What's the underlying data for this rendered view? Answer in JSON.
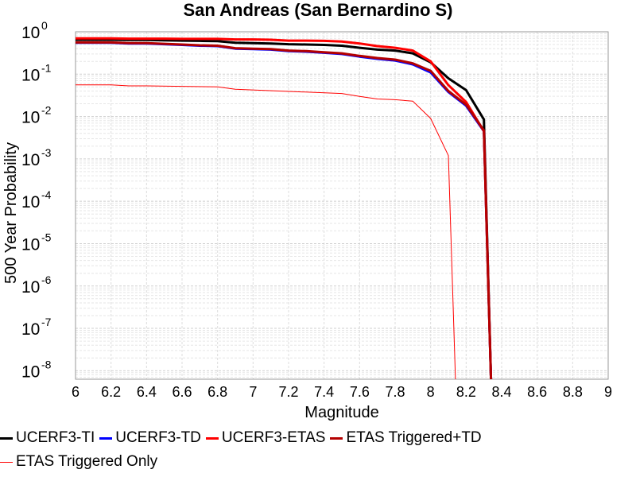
{
  "chart_data": {
    "type": "line",
    "title": "San Andreas (San Bernardino S)",
    "xlabel": "Magnitude",
    "ylabel": "500 Year Probability",
    "xlim": [
      6,
      9
    ],
    "ylog": true,
    "ylim_exponents": [
      -8.2,
      0
    ],
    "xticks": [
      "6",
      "6.2",
      "6.4",
      "6.6",
      "6.8",
      "7",
      "7.2",
      "7.4",
      "7.6",
      "7.8",
      "8",
      "8.2",
      "8.4",
      "8.6",
      "8.8",
      "9"
    ],
    "ytick_base": "10",
    "ytick_exponents": [
      "0",
      "-1",
      "-2",
      "-3",
      "-4",
      "-5",
      "-6",
      "-7",
      "-8"
    ],
    "grid": true,
    "legend_position": "bottom",
    "series": [
      {
        "name": "UCERF3-TI",
        "color": "#000000",
        "width": 3,
        "x": [
          6.0,
          6.1,
          6.2,
          6.3,
          6.4,
          6.5,
          6.6,
          6.7,
          6.8,
          6.9,
          7.0,
          7.1,
          7.2,
          7.3,
          7.4,
          7.5,
          7.6,
          7.7,
          7.8,
          7.9,
          8.0,
          8.1,
          8.2,
          8.3,
          8.34
        ],
        "y": [
          0.65,
          0.65,
          0.65,
          0.64,
          0.64,
          0.63,
          0.62,
          0.61,
          0.6,
          0.55,
          0.54,
          0.53,
          0.51,
          0.5,
          0.49,
          0.47,
          0.42,
          0.38,
          0.36,
          0.31,
          0.19,
          0.08,
          0.042,
          0.0085,
          5e-09
        ]
      },
      {
        "name": "UCERF3-TD",
        "color": "#0000ff",
        "width": 3,
        "x": [
          6.0,
          6.1,
          6.2,
          6.3,
          6.4,
          6.5,
          6.6,
          6.7,
          6.8,
          6.9,
          7.0,
          7.1,
          7.2,
          7.3,
          7.4,
          7.5,
          7.6,
          7.7,
          7.8,
          7.9,
          8.0,
          8.1,
          8.2,
          8.3,
          8.34
        ],
        "y": [
          0.55,
          0.55,
          0.55,
          0.53,
          0.53,
          0.51,
          0.49,
          0.47,
          0.46,
          0.4,
          0.39,
          0.38,
          0.35,
          0.34,
          0.32,
          0.3,
          0.26,
          0.23,
          0.21,
          0.17,
          0.11,
          0.038,
          0.018,
          0.0045,
          5e-09
        ]
      },
      {
        "name": "UCERF3-ETAS",
        "color": "#ff0000",
        "width": 3,
        "x": [
          6.0,
          6.1,
          6.2,
          6.3,
          6.4,
          6.5,
          6.6,
          6.7,
          6.8,
          6.9,
          7.0,
          7.1,
          7.2,
          7.3,
          7.4,
          7.5,
          7.6,
          7.7,
          7.8,
          7.9,
          8.0,
          8.1,
          8.2,
          8.3,
          8.34
        ],
        "y": [
          0.7,
          0.7,
          0.7,
          0.69,
          0.69,
          0.69,
          0.68,
          0.68,
          0.68,
          0.66,
          0.66,
          0.65,
          0.62,
          0.62,
          0.61,
          0.59,
          0.53,
          0.46,
          0.42,
          0.36,
          0.2,
          0.055,
          0.022,
          0.0045,
          5e-09
        ]
      },
      {
        "name": "ETAS Triggered+TD",
        "color": "#b40000",
        "width": 3,
        "x": [
          6.0,
          6.1,
          6.2,
          6.3,
          6.4,
          6.5,
          6.6,
          6.7,
          6.8,
          6.9,
          7.0,
          7.1,
          7.2,
          7.3,
          7.4,
          7.5,
          7.6,
          7.7,
          7.8,
          7.9,
          8.0,
          8.1,
          8.2,
          8.3,
          8.34
        ],
        "y": [
          0.56,
          0.56,
          0.56,
          0.54,
          0.54,
          0.52,
          0.5,
          0.48,
          0.47,
          0.41,
          0.4,
          0.39,
          0.36,
          0.35,
          0.33,
          0.31,
          0.27,
          0.24,
          0.22,
          0.18,
          0.12,
          0.04,
          0.019,
          0.0047,
          5e-09
        ]
      },
      {
        "name": "ETAS Triggered Only",
        "color": "#ff0000",
        "width": 1,
        "x": [
          6.0,
          6.2,
          6.3,
          6.4,
          6.8,
          6.9,
          7.5,
          7.6,
          7.7,
          7.8,
          7.9,
          8.0,
          8.1,
          8.14
        ],
        "y": [
          0.056,
          0.056,
          0.053,
          0.053,
          0.05,
          0.044,
          0.035,
          0.03,
          0.026,
          0.025,
          0.023,
          0.009,
          0.0012,
          5e-09
        ]
      }
    ]
  }
}
